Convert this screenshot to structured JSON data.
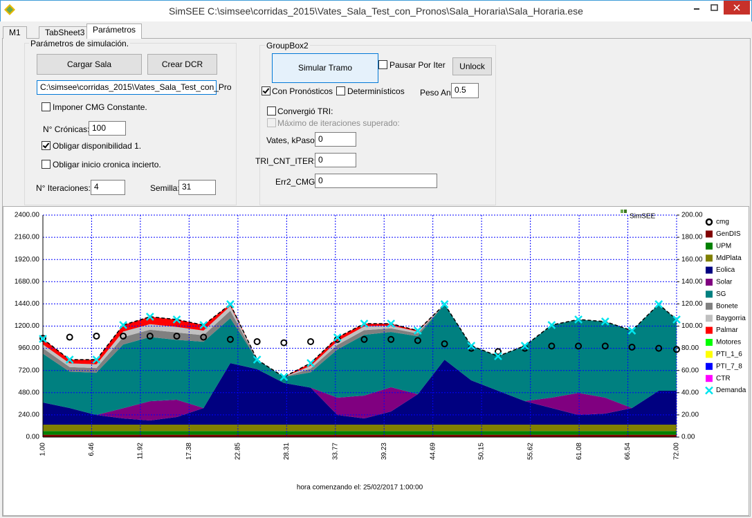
{
  "window": {
    "title": "SimSEE C:\\simsee\\corridas_2015\\Vates_Sala_Test_con_Pronos\\Sala_Horaria\\Sala_Horaria.ese"
  },
  "tabs": [
    "M1",
    "TabSheet3",
    "Parámetros"
  ],
  "params": {
    "group_title": "Parámetros de simulación.",
    "load_button": "Cargar Sala",
    "dcr_button": "Crear DCR",
    "path": "C:\\simsee\\corridas_2015\\Vates_Sala_Test_con_Pro",
    "cmg_const": {
      "label": "Imponer CMG Constante.",
      "checked": false
    },
    "cronicas_label": "N° Crónicas:",
    "cronicas": 100,
    "disponibilidad": {
      "label": "Obligar disponibilidad 1.",
      "checked": true
    },
    "inicio_incierto": {
      "label": "Obligar inicio cronica incierto.",
      "checked": false
    },
    "iteraciones_label": "N° Iteraciones:",
    "iteraciones": 4,
    "semilla_label": "Semilla:",
    "semilla": 31
  },
  "group2": {
    "title": "GroupBox2",
    "simular_button": "Simular Tramo",
    "pausar": {
      "label": "Pausar Por Iter",
      "checked": false
    },
    "unlock_button": "Unlock",
    "pronosticos": {
      "label": "Con Pronósticos",
      "checked": true
    },
    "deterministicos": {
      "label": "Determinísticos",
      "checked": false
    },
    "peso_label": "Peso Ant",
    "peso": 0.5,
    "convergio": {
      "label": "Convergió TRI:",
      "checked": false
    },
    "maximo": {
      "label": "Máximo de iteraciones superado:",
      "checked": false,
      "disabled": true
    },
    "kpaso_label": "Vates, kPaso:",
    "kpaso": 0,
    "tri_label": "TRI_CNT_ITER:",
    "tri": 0,
    "err_label": "Err2_CMG:",
    "err": 0
  },
  "chart_data": {
    "type": "area",
    "annotation": "SimSEE",
    "xlabel": "hora comenzando el: 25/02/2017 1:00:00",
    "x": [
      1,
      4,
      7,
      10,
      13,
      16,
      19,
      22,
      25,
      28,
      31,
      34,
      37,
      40,
      43,
      46,
      49,
      52,
      55,
      58,
      61,
      64,
      67,
      70,
      72
    ],
    "xlim": [
      1,
      72
    ],
    "xticks": [
      {
        "value": 1,
        "label": "1.00"
      },
      6.46,
      11.92,
      17.38,
      22.85,
      28.31,
      33.77,
      39.23,
      44.69,
      50.15,
      55.62,
      61.08,
      66.54,
      {
        "value": 72,
        "label": "72.00"
      }
    ],
    "ylim": [
      0,
      2400
    ],
    "yticks": [
      {
        "value": 0,
        "label": "0.00"
      },
      {
        "value": 240,
        "label": "240.00"
      },
      {
        "value": 480,
        "label": "480.00"
      },
      {
        "value": 720,
        "label": "720.00"
      },
      {
        "value": 960,
        "label": "960.00"
      },
      {
        "value": 1200,
        "label": "1200.00"
      },
      {
        "value": 1440,
        "label": "1440.00"
      },
      {
        "value": 1680,
        "label": "1680.00"
      },
      {
        "value": 1920,
        "label": "1920.00"
      },
      {
        "value": 2160,
        "label": "2160.00"
      },
      {
        "value": 2400,
        "label": "2400.00"
      }
    ],
    "y2lim": [
      0,
      200
    ],
    "y2ticks": [
      {
        "value": 0,
        "label": "0.00"
      },
      {
        "value": 20,
        "label": "20.00"
      },
      {
        "value": 40,
        "label": "40.00"
      },
      {
        "value": 60,
        "label": "60.00"
      },
      {
        "value": 80,
        "label": "80.00"
      },
      {
        "value": 100,
        "label": "100.00"
      },
      {
        "value": 120,
        "label": "120.00"
      },
      {
        "value": 140,
        "label": "140.00"
      },
      {
        "value": 160,
        "label": "160.00"
      },
      {
        "value": 180,
        "label": "180.00"
      },
      {
        "value": 200,
        "label": "200.00"
      }
    ],
    "grid": true,
    "legend": "right",
    "series": [
      {
        "name": "cmg",
        "color": "#000000",
        "marker": "circle",
        "axis": "y2",
        "values": [
          89,
          90,
          91,
          91,
          91,
          91,
          90,
          88,
          86,
          85,
          86,
          88,
          88,
          88,
          87,
          84,
          80,
          77,
          80,
          82,
          82,
          82,
          81,
          80,
          79
        ]
      },
      {
        "name": "GenDIS",
        "color": "#800000",
        "values": [
          25,
          25,
          25,
          25,
          25,
          25,
          25,
          25,
          25,
          25,
          25,
          25,
          25,
          25,
          25,
          25,
          25,
          25,
          25,
          25,
          25,
          25,
          25,
          25,
          25
        ]
      },
      {
        "name": "UPM",
        "color": "#008000",
        "values": [
          40,
          40,
          40,
          40,
          40,
          40,
          40,
          40,
          40,
          40,
          40,
          40,
          40,
          40,
          40,
          40,
          40,
          40,
          40,
          40,
          40,
          40,
          40,
          40,
          40
        ]
      },
      {
        "name": "MdPlata",
        "color": "#808000",
        "values": [
          70,
          70,
          70,
          70,
          70,
          70,
          70,
          70,
          70,
          70,
          70,
          70,
          70,
          70,
          70,
          70,
          70,
          70,
          70,
          70,
          70,
          70,
          70,
          70,
          70
        ]
      },
      {
        "name": "Eolica",
        "color": "#000080",
        "values": [
          239,
          179,
          104,
          67,
          44,
          82,
          179,
          665,
          600,
          450,
          400,
          104,
          67,
          142,
          329,
          702,
          478,
          366,
          254,
          179,
          104,
          119,
          179,
          366,
          366
        ]
      },
      {
        "name": "Solar",
        "color": "#800080",
        "values": [
          0,
          0,
          0,
          110,
          209,
          187,
          0,
          0,
          0,
          0,
          0,
          187,
          247,
          262,
          0,
          0,
          0,
          0,
          0,
          112,
          239,
          172,
          0,
          0,
          0
        ]
      },
      {
        "name": "SG",
        "color": "#008080",
        "values": [
          528,
          393,
          458,
          689,
          693,
          647,
          717,
          486,
          102,
          65,
          165,
          521,
          657,
          597,
          627,
          599,
          374,
          374,
          598,
          785,
          793,
          823,
          837,
          935,
          770
        ]
      },
      {
        "name": "Bonete",
        "color": "#808080",
        "values": [
          60,
          50,
          50,
          80,
          80,
          80,
          70,
          80,
          0,
          0,
          40,
          50,
          50,
          40,
          30,
          0,
          0,
          0,
          0,
          0,
          0,
          0,
          0,
          0,
          0
        ]
      },
      {
        "name": "Baygorria",
        "color": "#c0c0c0",
        "values": [
          40,
          40,
          40,
          60,
          60,
          60,
          50,
          50,
          0,
          0,
          30,
          40,
          40,
          30,
          20,
          0,
          0,
          0,
          0,
          0,
          0,
          0,
          0,
          0,
          0
        ]
      },
      {
        "name": "Palmar",
        "color": "#ff0000",
        "values": [
          60,
          40,
          50,
          70,
          80,
          80,
          60,
          20,
          0,
          0,
          30,
          40,
          30,
          20,
          10,
          0,
          0,
          0,
          0,
          0,
          0,
          0,
          0,
          0,
          0
        ]
      },
      {
        "name": "Motores",
        "color": "#00ff00",
        "values": [
          0,
          0,
          0,
          0,
          0,
          0,
          0,
          0,
          0,
          0,
          0,
          0,
          0,
          0,
          0,
          0,
          0,
          0,
          0,
          0,
          0,
          0,
          0,
          0,
          0
        ]
      },
      {
        "name": "PTI_1_6",
        "color": "#ffff00",
        "values": [
          0,
          0,
          0,
          0,
          0,
          0,
          0,
          0,
          0,
          0,
          0,
          0,
          0,
          0,
          0,
          0,
          0,
          0,
          0,
          0,
          0,
          0,
          0,
          0,
          0
        ]
      },
      {
        "name": "PTI_7_8",
        "color": "#0000ff",
        "values": [
          0,
          0,
          0,
          0,
          0,
          0,
          0,
          0,
          0,
          0,
          0,
          0,
          0,
          0,
          0,
          0,
          0,
          0,
          0,
          0,
          0,
          0,
          0,
          0,
          0
        ]
      },
      {
        "name": "CTR",
        "color": "#ff00ff",
        "values": [
          0,
          0,
          0,
          0,
          0,
          0,
          0,
          0,
          0,
          0,
          0,
          0,
          0,
          0,
          0,
          0,
          0,
          0,
          0,
          0,
          0,
          0,
          0,
          0,
          0
        ]
      },
      {
        "name": "Demanda",
        "color": "#00e5ee",
        "marker": "x",
        "values": [
          1062,
          837,
          837,
          1211,
          1301,
          1271,
          1211,
          1436,
          837,
          650,
          800,
          1077,
          1226,
          1226,
          1151,
          1436,
          987,
          875,
          987,
          1211,
          1271,
          1249,
          1151,
          1436,
          1271
        ]
      }
    ]
  }
}
